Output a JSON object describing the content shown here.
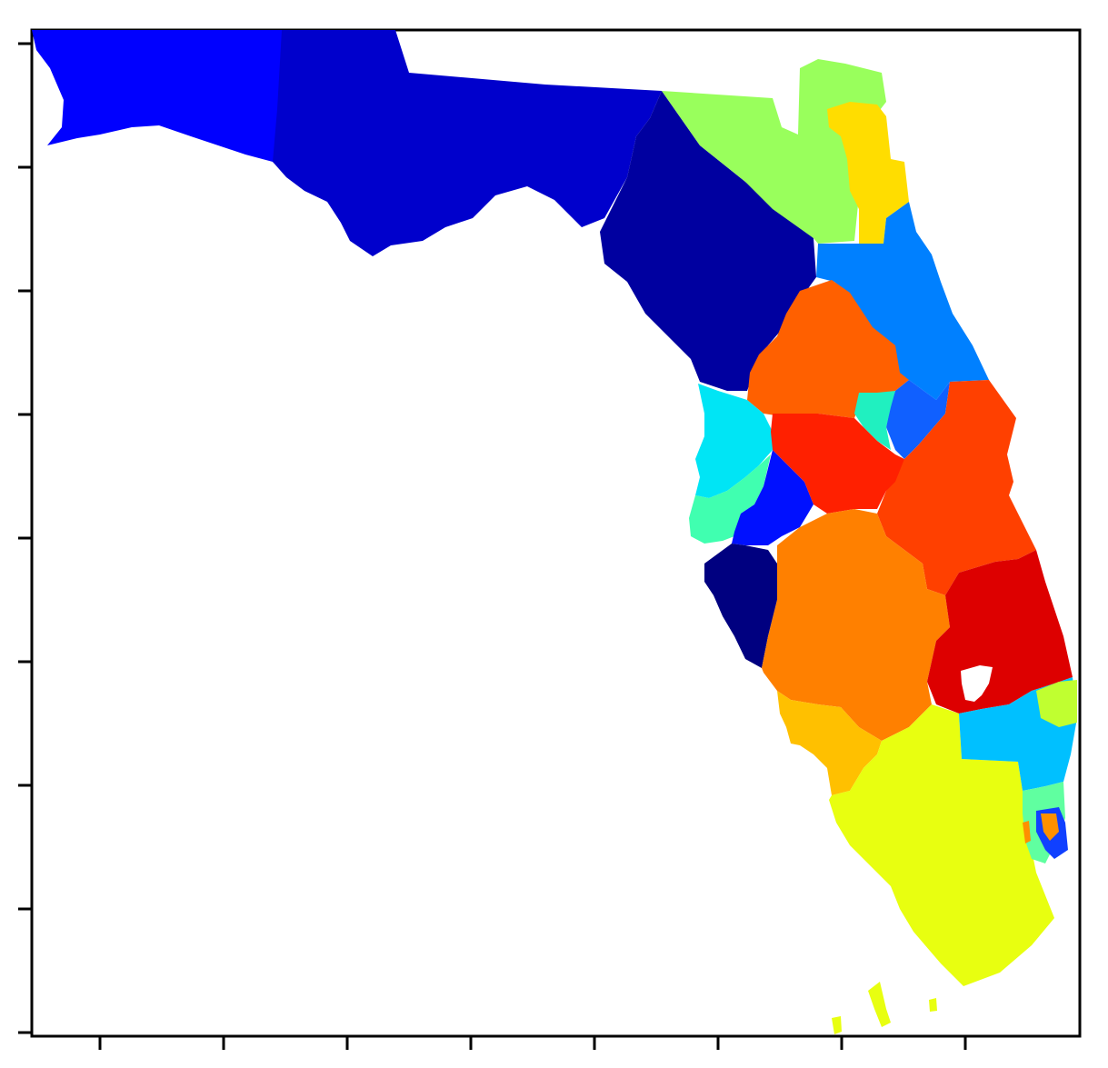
{
  "map": {
    "type": "choropleth-districts",
    "colormap": "jet",
    "axes": {
      "ticks_labeled": false,
      "x_tick_count": 8,
      "y_tick_count": 9,
      "frame": true
    },
    "districts": [
      {
        "id": "d-panhandle-west",
        "color": "#0000ff"
      },
      {
        "id": "d-panhandle-central",
        "color": "#0000cc"
      },
      {
        "id": "d-north-central",
        "color": "#0000a0"
      },
      {
        "id": "d-northeast",
        "color": "#99ff5c"
      },
      {
        "id": "d-jacksonville",
        "color": "#ffdd00"
      },
      {
        "id": "d-ne-coast",
        "color": "#0080ff"
      },
      {
        "id": "d-central-north",
        "color": "#ff6000"
      },
      {
        "id": "d-orlando-east",
        "color": "#1060ff"
      },
      {
        "id": "d-orlando-north",
        "color": "#20f0c0"
      },
      {
        "id": "d-east-coast-central",
        "color": "#ff4000"
      },
      {
        "id": "d-gulf-north",
        "color": "#00e5f5"
      },
      {
        "id": "d-gulf-aqua",
        "color": "#40ffb0"
      },
      {
        "id": "d-tampa",
        "color": "#0010ff"
      },
      {
        "id": "d-orlando-core",
        "color": "#ff2000"
      },
      {
        "id": "d-central-south",
        "color": "#ff8000"
      },
      {
        "id": "d-treasure-coast",
        "color": "#dd0000"
      },
      {
        "id": "d-sw-gulf",
        "color": "#000080"
      },
      {
        "id": "d-sw-fort-myers",
        "color": "#ffc000"
      },
      {
        "id": "d-south",
        "color": "#e8ff10"
      },
      {
        "id": "d-palm-beach",
        "color": "#00c0ff"
      },
      {
        "id": "d-pb-north",
        "color": "#c0ff30"
      },
      {
        "id": "d-broward",
        "color": "#1040ff"
      },
      {
        "id": "d-broward-mix",
        "color": "#60ffa0"
      },
      {
        "id": "d-miami-orange",
        "color": "#ff9000"
      }
    ]
  }
}
